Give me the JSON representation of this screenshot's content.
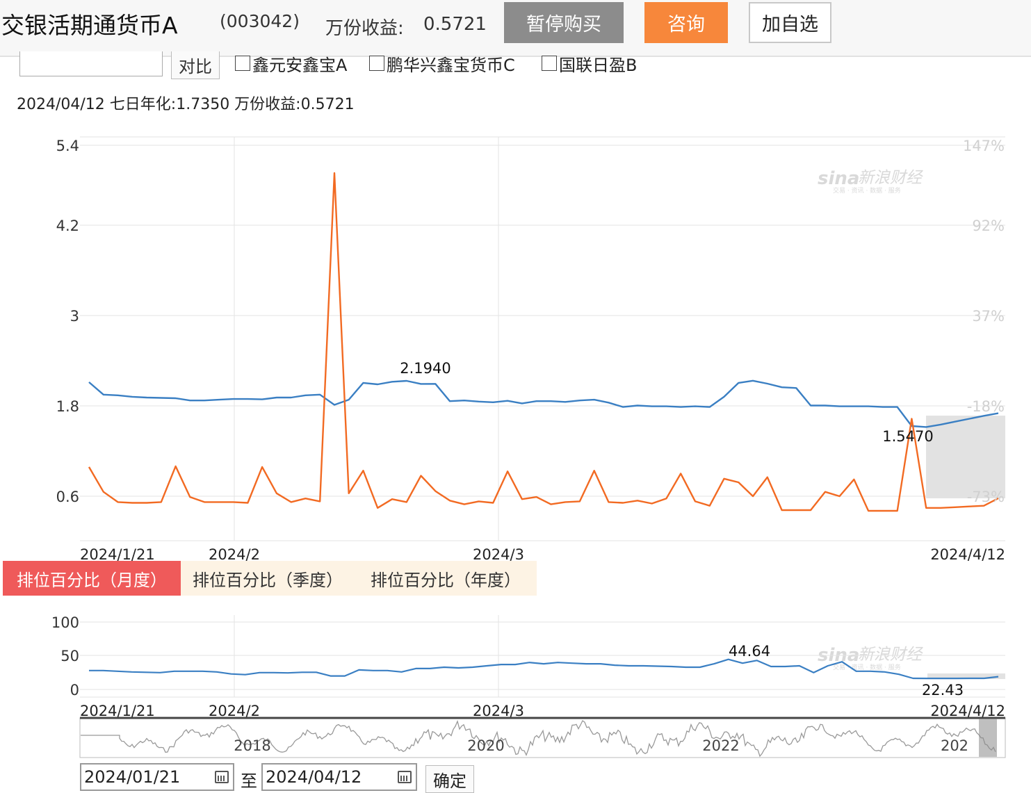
{
  "header": {
    "fund_name": "交银活期通货币A",
    "fund_code": "(003042)",
    "wan_label": "万份收益:",
    "wan_value": "0.5721",
    "pause_label": "暂停购买",
    "consult_label": "咨询",
    "fav_label": "加自选"
  },
  "compare": {
    "input_value": "",
    "button_label": "对比",
    "checkboxes": [
      "鑫元安鑫宝A",
      "鹏华兴鑫宝货币C",
      "国联日盈B"
    ]
  },
  "info_line": "2024/04/12 七日年化:1.7350 万份收益:0.5721",
  "watermark": {
    "logo": "sina",
    "name": "新浪财经",
    "tagline": "交易 · 资讯 · 数据 · 服务"
  },
  "tabs": [
    "排位百分比（月度）",
    "排位百分比（季度）",
    "排位百分比（年度）"
  ],
  "range_selector": {
    "from": "2024/01/21",
    "to_label": "至",
    "to": "2024/04/12",
    "ok_label": "确定",
    "navigator_years": [
      "2018",
      "2020",
      "2022",
      "202"
    ]
  },
  "colors": {
    "blue": "#3a7fc3",
    "orange": "#f26a22",
    "pause_btn": "#8c8c8c",
    "consult_btn": "#f7873b",
    "tab_active": "#ef5a5a",
    "tab_inactive": "#fdf3e4"
  },
  "chart_data": [
    {
      "type": "line",
      "ylim": [
        -0.6,
        5.4
      ],
      "yticks": [
        "5.4",
        "4.2",
        "3",
        "1.8",
        "0.6"
      ],
      "right_ticks": [
        "147%",
        "92%",
        "37%",
        "-18%",
        "-73%"
      ],
      "x_labels": [
        "2024/1/21",
        "2024/2",
        "2024/3",
        "2024/4/12"
      ],
      "grid": true,
      "series": [
        {
          "values": [
            2.16,
            1.99,
            1.98,
            1.96,
            1.95,
            1.945,
            1.94,
            1.91,
            1.91,
            1.92,
            1.93,
            1.93,
            1.925,
            1.95,
            1.95,
            1.98,
            1.99,
            1.85,
            1.92,
            2.15,
            2.13,
            2.165,
            2.178,
            2.136,
            2.137,
            1.9,
            1.91,
            1.895,
            1.885,
            1.905,
            1.87,
            1.9,
            1.9,
            1.89,
            1.91,
            1.92,
            1.88,
            1.82,
            1.84,
            1.83,
            1.83,
            1.82,
            1.83,
            1.82,
            1.96,
            2.15,
            2.18,
            2.14,
            2.09,
            2.08,
            1.84,
            1.84,
            1.83,
            1.83,
            1.83,
            1.82,
            1.82,
            1.56,
            1.547,
            1.58,
            1.62,
            1.66,
            1.7,
            1.735
          ]
        },
        {
          "values": [
            1.0,
            0.66,
            0.52,
            0.51,
            0.51,
            0.52,
            1.01,
            0.59,
            0.52,
            0.52,
            0.52,
            0.51,
            1.0,
            0.64,
            0.52,
            0.57,
            0.53,
            5.02,
            0.64,
            0.95,
            0.44,
            0.56,
            0.52,
            0.88,
            0.67,
            0.54,
            0.49,
            0.53,
            0.51,
            0.94,
            0.56,
            0.59,
            0.49,
            0.52,
            0.53,
            0.95,
            0.52,
            0.51,
            0.54,
            0.5,
            0.57,
            0.91,
            0.53,
            0.47,
            0.84,
            0.79,
            0.6,
            0.86,
            0.41,
            0.41,
            0.41,
            0.66,
            0.6,
            0.83,
            0.4,
            0.4,
            0.4,
            1.66,
            0.44,
            0.44,
            0.45,
            0.46,
            0.47,
            0.5721
          ]
        }
      ],
      "annotations": [
        "2.1940",
        "1.5470"
      ]
    },
    {
      "type": "line",
      "ylim": [
        0,
        100
      ],
      "yticks": [
        "100",
        "50",
        "0"
      ],
      "x_labels": [
        "2024/1/21",
        "2024/2",
        "2024/3",
        "2024/4/12"
      ],
      "grid": true,
      "series": [
        {
          "values": [
            28,
            28,
            27,
            26,
            25.5,
            25,
            27,
            27,
            27,
            26,
            23,
            22,
            25,
            25,
            24.5,
            25.5,
            25.5,
            20,
            20,
            29,
            28,
            28,
            26,
            31,
            31,
            33,
            32,
            33,
            35,
            37,
            37,
            40,
            38,
            40,
            39,
            38,
            38,
            36,
            35,
            35,
            34.5,
            34,
            33,
            33,
            38,
            44.64,
            39,
            43,
            34,
            34,
            35,
            25,
            35,
            41,
            27,
            27,
            26,
            22.5,
            16.5,
            16.4,
            16.43,
            16.43,
            16.5,
            16.5,
            19
          ]
        }
      ],
      "annotations": [
        "44.64",
        "22.43"
      ]
    }
  ]
}
